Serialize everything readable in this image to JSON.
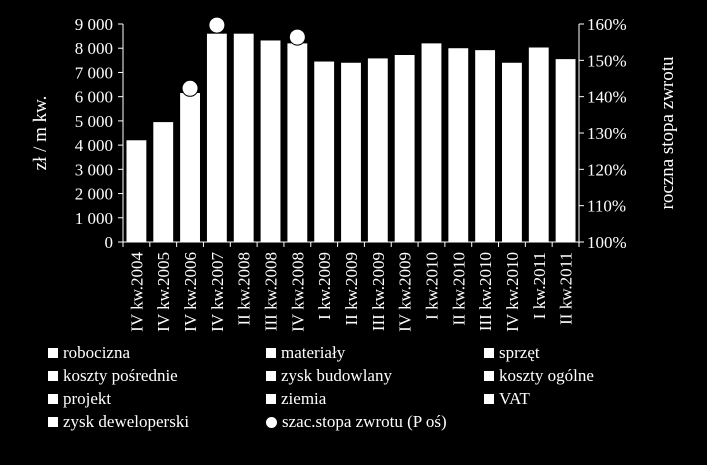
{
  "chart_data": {
    "type": "bar",
    "categories": [
      "IV kw.2004",
      "IV kw.2005",
      "IV kw.2006",
      "IV kw.2007",
      "II kw.2008",
      "III kw.2008",
      "IV kw.2008",
      "I kw.2009",
      "II kw.2009",
      "III kw.2009",
      "IV kw.2009",
      "I kw.2010",
      "II kw.2010",
      "III kw.2010",
      "IV kw.2010",
      "I kw.2011",
      "II kw.2011"
    ],
    "ylabel": "zł / m kw.",
    "y2label": "roczna stopa zwrotu",
    "ylim": [
      0,
      9000
    ],
    "yticks": [
      "0",
      "1 000",
      "2 000",
      "3 000",
      "4 000",
      "5 000",
      "6 000",
      "7 000",
      "8 000",
      "9 000"
    ],
    "y2lim": [
      1.0,
      1.6
    ],
    "y2ticks": [
      "100%",
      "110%",
      "120%",
      "130%",
      "140%",
      "150%",
      "160%"
    ],
    "bar_color": "#ffffff",
    "bar_values": [
      4200,
      4950,
      6150,
      8600,
      8600,
      8320,
      8200,
      7450,
      7400,
      7580,
      7720,
      8200,
      8000,
      7920,
      7400,
      8030,
      7550
    ],
    "legend_position": "bottom",
    "legend": [
      "robocizna",
      "materiały",
      "sprzęt",
      "koszty pośrednie",
      "zysk budowlany",
      "koszty ogólne",
      "projekt",
      "ziemia",
      "VAT",
      "zysk deweloperski",
      "szac.stopa zwrotu (P oś)"
    ],
    "stack_series": [
      {
        "name": "robocizna"
      },
      {
        "name": "materiały"
      },
      {
        "name": "sprzęt"
      },
      {
        "name": "koszty pośrednie"
      },
      {
        "name": "zysk budowlany"
      },
      {
        "name": "koszty ogólne"
      },
      {
        "name": "projekt"
      },
      {
        "name": "ziemia"
      },
      {
        "name": "VAT"
      },
      {
        "name": "zysk deweloperski"
      }
    ],
    "marker_series": {
      "name": "szac.stopa zwrotu (P oś)",
      "axis": "right",
      "points": [
        {
          "category": "IV kw.2006",
          "value": 1.423
        },
        {
          "category": "IV kw.2007",
          "value": 1.597
        },
        {
          "category": "IV kw.2008",
          "value": 1.564
        }
      ]
    }
  }
}
